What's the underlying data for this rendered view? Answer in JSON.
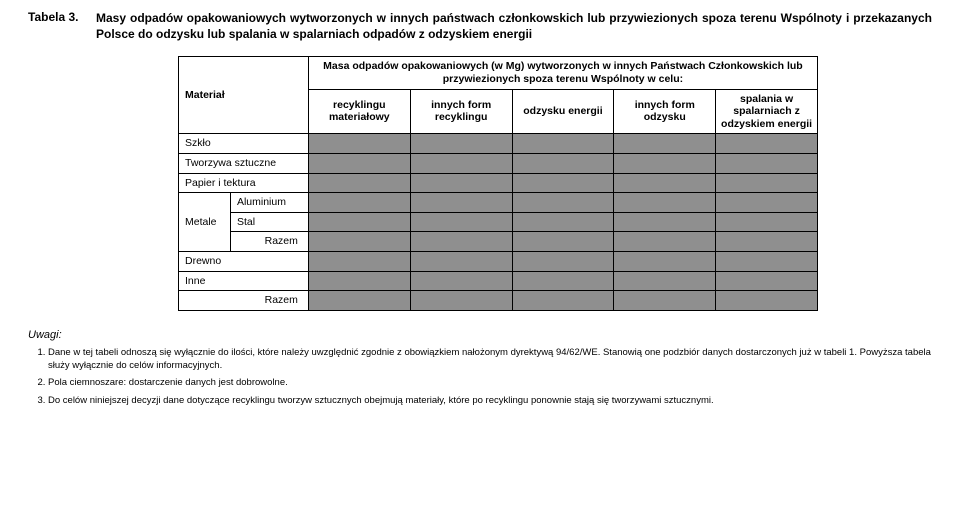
{
  "header": {
    "table_label": "Tabela 3.",
    "title": "Masy odpadów opakowaniowych wytworzonych w innych państwach członkowskich lub przywiezionych spoza terenu Wspólnoty i przekazanych Polsce do odzysku lub spalania w spalarniach odpadów z odzyskiem energii"
  },
  "table": {
    "material_header": "Materiał",
    "top_header": "Masa odpadów opakowaniowych (w Mg) wytworzonych w innych Państwach Członkowskich lub przywiezionych spoza terenu Wspólnoty w celu:",
    "col_headers": [
      "recyklingu materiałowy",
      "innych form recyklingu",
      "odzysku energii",
      "innych form odzysku",
      "spalania w spalarniach z odzyskiem energii"
    ],
    "rows_simple": [
      "Szkło",
      "Tworzywa sztuczne",
      "Papier i tektura"
    ],
    "metals": {
      "group": "Metale",
      "subrows": [
        "Aluminium",
        "Stal"
      ],
      "subtotal": "Razem"
    },
    "rows_after": [
      "Drewno",
      "Inne"
    ],
    "total": "Razem"
  },
  "notes": {
    "heading": "Uwagi:",
    "items": [
      "Dane w tej tabeli odnoszą się wyłącznie do ilości, które należy uwzględnić zgodnie z obowiązkiem nałożonym dyrektywą 94/62/WE. Stanowią one podzbiór danych dostarczonych już w tabeli 1. Powyższa tabela służy wyłącznie do celów informacyjnych.",
      "Pola ciemnoszare: dostarczenie danych jest dobrowolne.",
      "Do celów niniejszej decyzji dane dotyczące recyklingu tworzyw sztucznych obejmują materiały, które po recyklingu ponownie stają się tworzywami sztucznymi."
    ]
  },
  "style": {
    "grey_cell": "#8f8f8f",
    "text_color": "#000000",
    "background": "#ffffff"
  }
}
